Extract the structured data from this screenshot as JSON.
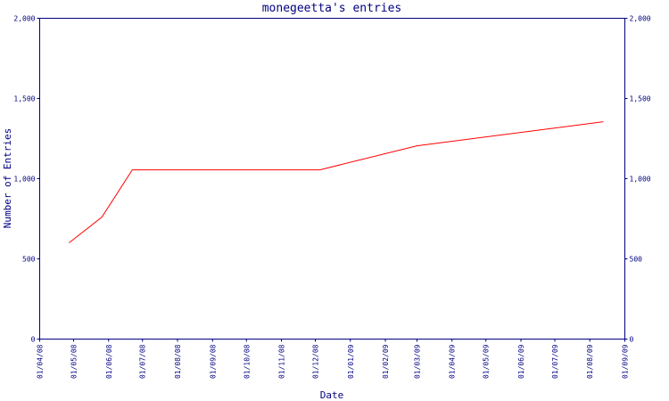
{
  "chart_data": {
    "type": "line",
    "title": "monegeetta's entries",
    "xlabel": "Date",
    "ylabel": "Number of Entries",
    "ylim": [
      0,
      2000
    ],
    "xlim": [
      "2008-04-01",
      "2009-09-01"
    ],
    "y_ticks": [
      0,
      500,
      1000,
      1500,
      2000
    ],
    "y_tick_labels": [
      "0",
      "500",
      "1,000",
      "1,500",
      "2,000"
    ],
    "x_tick_labels": [
      "01/04/08",
      "01/05/08",
      "01/06/08",
      "01/07/08",
      "01/08/08",
      "01/09/08",
      "01/10/08",
      "01/11/08",
      "01/12/08",
      "01/01/09",
      "01/02/09",
      "01/03/09",
      "01/04/09",
      "01/05/09",
      "01/06/09",
      "01/07/09",
      "01/08/09",
      "01/09/09"
    ],
    "grid": false,
    "colors": {
      "line": "#ff0000",
      "axis": "#000080"
    },
    "series": [
      {
        "x": [
          "2008-04-27",
          "2008-05-26",
          "2008-06-22",
          "2008-12-05",
          "2009-03-01",
          "2009-08-13"
        ],
        "y": [
          600,
          760,
          1055,
          1055,
          1205,
          1355
        ]
      }
    ]
  }
}
